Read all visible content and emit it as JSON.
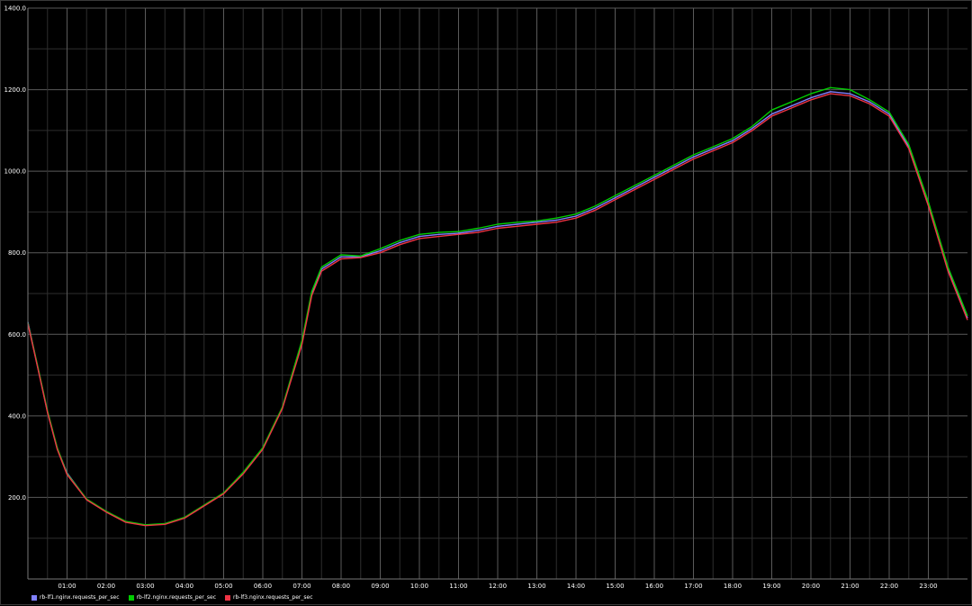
{
  "chart_data": {
    "type": "line",
    "title": "",
    "xlabel": "",
    "ylabel": "",
    "ylim": [
      0,
      1400
    ],
    "xlim": [
      0,
      24
    ],
    "yticks": [
      {
        "value": 0,
        "label": ""
      },
      {
        "value": 200,
        "label": "200.0"
      },
      {
        "value": 400,
        "label": "400.0"
      },
      {
        "value": 600,
        "label": "600.0"
      },
      {
        "value": 800,
        "label": "800.0"
      },
      {
        "value": 1000,
        "label": "1000.0"
      },
      {
        "value": 1200,
        "label": "1200.0"
      },
      {
        "value": 1400,
        "label": "1400.0"
      }
    ],
    "xticks": [
      {
        "value": 1,
        "label": "01:00"
      },
      {
        "value": 2,
        "label": "02:00"
      },
      {
        "value": 3,
        "label": "03:00"
      },
      {
        "value": 4,
        "label": "04:00"
      },
      {
        "value": 5,
        "label": "05:00"
      },
      {
        "value": 6,
        "label": "06:00"
      },
      {
        "value": 7,
        "label": "07:00"
      },
      {
        "value": 8,
        "label": "08:00"
      },
      {
        "value": 9,
        "label": "09:00"
      },
      {
        "value": 10,
        "label": "10:00"
      },
      {
        "value": 11,
        "label": "11:00"
      },
      {
        "value": 12,
        "label": "12:00"
      },
      {
        "value": 13,
        "label": "13:00"
      },
      {
        "value": 14,
        "label": "14:00"
      },
      {
        "value": 15,
        "label": "15:00"
      },
      {
        "value": 16,
        "label": "16:00"
      },
      {
        "value": 17,
        "label": "17:00"
      },
      {
        "value": 18,
        "label": "18:00"
      },
      {
        "value": 19,
        "label": "19:00"
      },
      {
        "value": 20,
        "label": "20:00"
      },
      {
        "value": 21,
        "label": "21:00"
      },
      {
        "value": 22,
        "label": "22:00"
      },
      {
        "value": 23,
        "label": "23:00"
      }
    ],
    "grid": true,
    "legend_position": "bottom-left",
    "series": [
      {
        "name": "rb-lf1.nginx.requests_per_sec",
        "color": "#8080ff",
        "x": [
          0,
          0.25,
          0.5,
          0.75,
          1,
          1.5,
          2,
          2.5,
          3,
          3.5,
          4,
          4.5,
          5,
          5.5,
          6,
          6.5,
          7,
          7.25,
          7.5,
          8,
          8.5,
          9,
          9.5,
          10,
          10.5,
          11,
          11.5,
          12,
          12.5,
          13,
          13.5,
          14,
          14.5,
          15,
          15.5,
          16,
          16.5,
          17,
          17.5,
          18,
          18.5,
          19,
          19.5,
          20,
          20.5,
          21,
          21.5,
          22,
          22.5,
          23,
          23.5,
          24
        ],
        "values": [
          630,
          520,
          410,
          320,
          260,
          195,
          165,
          140,
          132,
          135,
          150,
          180,
          210,
          260,
          320,
          420,
          580,
          700,
          760,
          790,
          790,
          805,
          825,
          840,
          845,
          848,
          855,
          865,
          870,
          875,
          880,
          890,
          910,
          935,
          960,
          985,
          1010,
          1035,
          1055,
          1075,
          1105,
          1140,
          1160,
          1180,
          1195,
          1190,
          1170,
          1140,
          1060,
          920,
          760,
          640
        ]
      },
      {
        "name": "rb-lf2.nginx.requests_per_sec",
        "color": "#00cc00",
        "x": [
          0,
          0.25,
          0.5,
          0.75,
          1,
          1.5,
          2,
          2.5,
          3,
          3.5,
          4,
          4.5,
          5,
          5.5,
          6,
          6.5,
          7,
          7.25,
          7.5,
          8,
          8.5,
          9,
          9.5,
          10,
          10.5,
          11,
          11.5,
          12,
          12.5,
          13,
          13.5,
          14,
          14.5,
          15,
          15.5,
          16,
          16.5,
          17,
          17.5,
          18,
          18.5,
          19,
          19.5,
          20,
          20.5,
          21,
          21.5,
          22,
          22.5,
          23,
          23.5,
          24
        ],
        "values": [
          628,
          522,
          412,
          322,
          258,
          196,
          166,
          141,
          133,
          136,
          151,
          181,
          211,
          262,
          322,
          422,
          585,
          705,
          765,
          795,
          792,
          810,
          830,
          845,
          850,
          852,
          860,
          870,
          875,
          878,
          885,
          895,
          915,
          940,
          965,
          990,
          1015,
          1040,
          1060,
          1080,
          1110,
          1150,
          1170,
          1190,
          1205,
          1200,
          1175,
          1145,
          1065,
          925,
          765,
          645
        ]
      },
      {
        "name": "rb-lf3.nginx.requests_per_sec",
        "color": "#ee3344",
        "x": [
          0,
          0.25,
          0.5,
          0.75,
          1,
          1.5,
          2,
          2.5,
          3,
          3.5,
          4,
          4.5,
          5,
          5.5,
          6,
          6.5,
          7,
          7.25,
          7.5,
          8,
          8.5,
          9,
          9.5,
          10,
          10.5,
          11,
          11.5,
          12,
          12.5,
          13,
          13.5,
          14,
          14.5,
          15,
          15.5,
          16,
          16.5,
          17,
          17.5,
          18,
          18.5,
          19,
          19.5,
          20,
          20.5,
          21,
          21.5,
          22,
          22.5,
          23,
          23.5,
          24
        ],
        "values": [
          626,
          518,
          408,
          318,
          256,
          194,
          164,
          139,
          131,
          134,
          149,
          179,
          209,
          258,
          318,
          418,
          575,
          695,
          755,
          785,
          788,
          800,
          820,
          835,
          840,
          845,
          850,
          860,
          865,
          870,
          875,
          885,
          905,
          930,
          955,
          980,
          1005,
          1030,
          1050,
          1070,
          1100,
          1135,
          1155,
          1175,
          1190,
          1185,
          1165,
          1135,
          1055,
          915,
          755,
          635
        ]
      }
    ]
  }
}
